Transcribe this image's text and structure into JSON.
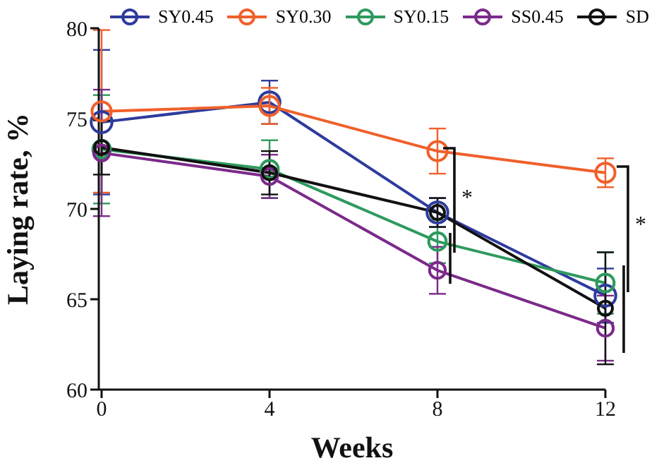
{
  "chart_data": {
    "type": "line",
    "xlabel": "Weeks",
    "ylabel": "Laying rate, %",
    "categories": [
      "0",
      "4",
      "8",
      "12"
    ],
    "series": [
      {
        "name": "SY0.45",
        "color": "#2e3b9c",
        "values": [
          74.8,
          75.9,
          69.8,
          65.2
        ],
        "errors": [
          4,
          1.2,
          0.8,
          1.5
        ]
      },
      {
        "name": "SY0.30",
        "color": "#f0602a",
        "values": [
          75.4,
          75.7,
          73.2,
          72.0
        ],
        "errors": [
          4.5,
          1,
          1.25,
          0.8
        ]
      },
      {
        "name": "SY0.15",
        "color": "#2e9a5e",
        "values": [
          73.3,
          72.2,
          68.2,
          65.9
        ],
        "errors": [
          3,
          1.6,
          1.2,
          1.7
        ]
      },
      {
        "name": "SS0.45",
        "color": "#7b2a8a",
        "values": [
          73.1,
          71.8,
          66.6,
          63.4
        ],
        "errors": [
          3.5,
          1.2,
          1.3,
          1.8
        ]
      },
      {
        "name": "SD",
        "color": "#111111",
        "values": [
          73.4,
          72.0,
          69.8,
          64.5
        ],
        "errors": [
          1.5,
          1.2,
          0.8,
          3.1
        ]
      }
    ],
    "ylim": [
      60,
      80
    ],
    "yticks": [
      60,
      65,
      70,
      75,
      80
    ],
    "annotations": [
      "*",
      "*"
    ],
    "grid": false,
    "legend": "top",
    "marker": "circle",
    "line_style": "solid"
  }
}
